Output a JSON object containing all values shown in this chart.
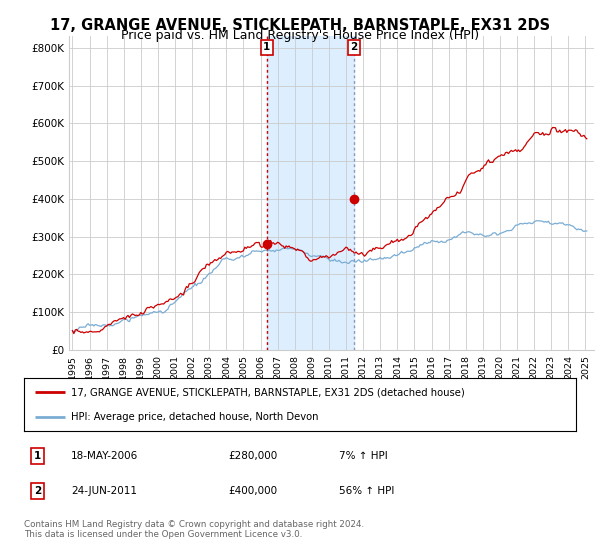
{
  "title": "17, GRANGE AVENUE, STICKLEPATH, BARNSTAPLE, EX31 2DS",
  "subtitle": "Price paid vs. HM Land Registry's House Price Index (HPI)",
  "title_fontsize": 10.5,
  "subtitle_fontsize": 9,
  "ylabel_ticks": [
    "£0",
    "£100K",
    "£200K",
    "£300K",
    "£400K",
    "£500K",
    "£600K",
    "£700K",
    "£800K"
  ],
  "ytick_values": [
    0,
    100000,
    200000,
    300000,
    400000,
    500000,
    600000,
    700000,
    800000
  ],
  "ylim": [
    0,
    830000
  ],
  "xlim_start": 1994.8,
  "xlim_end": 2025.5,
  "transaction1": {
    "year": 2006.37,
    "price": 280000,
    "label": "1",
    "date": "18-MAY-2006",
    "hpi": "7% ↑ HPI"
  },
  "transaction2": {
    "year": 2011.47,
    "price": 400000,
    "label": "2",
    "date": "24-JUN-2011",
    "hpi": "56% ↑ HPI"
  },
  "legend_line1": "17, GRANGE AVENUE, STICKLEPATH, BARNSTAPLE, EX31 2DS (detached house)",
  "legend_line2": "HPI: Average price, detached house, North Devon",
  "footnote": "Contains HM Land Registry data © Crown copyright and database right 2024.\nThis data is licensed under the Open Government Licence v3.0.",
  "red_color": "#cc0000",
  "blue_color": "#7aadd4",
  "shade_color": "#ddeeff",
  "background_color": "#ffffff",
  "grid_color": "#cccccc",
  "vline1_color": "#cc0000",
  "vline2_color": "#8899bb"
}
